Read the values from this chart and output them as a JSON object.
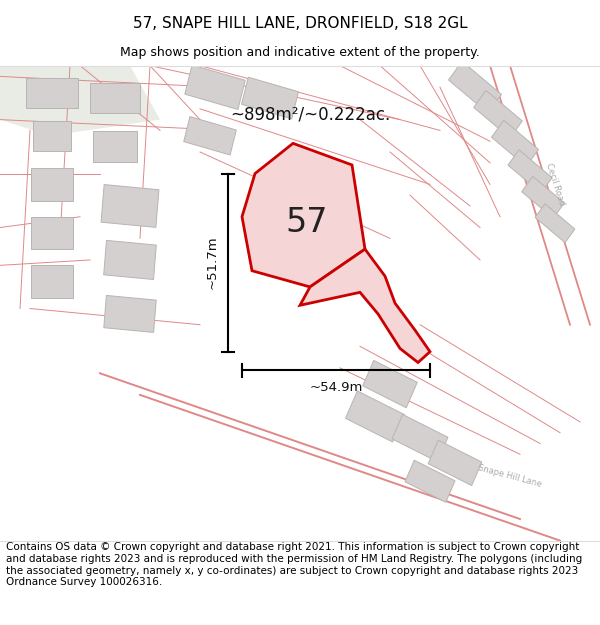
{
  "title": "57, SNAPE HILL LANE, DRONFIELD, S18 2GL",
  "subtitle": "Map shows position and indicative extent of the property.",
  "area_text": "~898m²/~0.222ac.",
  "width_label": "~54.9m",
  "height_label": "~51.7m",
  "number_label": "57",
  "footer_text": "Contains OS data © Crown copyright and database right 2021. This information is subject to Crown copyright and database rights 2023 and is reproduced with the permission of HM Land Registry. The polygons (including the associated geometry, namely x, y co-ordinates) are subject to Crown copyright and database rights 2023 Ordnance Survey 100026316.",
  "map_bg": "#f7f4f4",
  "plot_color": "#cc0000",
  "plot_fill": "#f5d5d5",
  "road_color": "#e08888",
  "building_color": "#d4d0d0",
  "building_edge": "#b8b4b4",
  "title_fontsize": 11,
  "subtitle_fontsize": 9,
  "footer_fontsize": 7.5,
  "road_label_color": "#aaaaaa"
}
